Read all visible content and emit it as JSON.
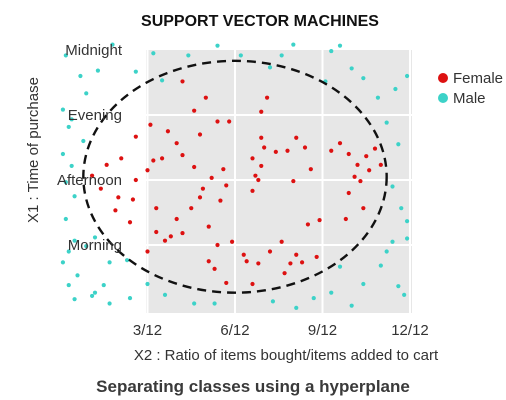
{
  "colors": {
    "female": "#dd1111",
    "male": "#3cd2c8",
    "panel": "#e7e7e7",
    "grid": "#ffffff",
    "boundary": "#111111"
  },
  "chart_data": {
    "type": "scatter",
    "title": "SUPPORT VECTOR MACHINES",
    "caption": "Separating classes using a hyperplane",
    "xlabel": "X2 : Ratio of items bought/items added to cart",
    "ylabel": "X1 : Time of purchase",
    "xlim": [
      0,
      12
    ],
    "ylim": [
      0,
      24
    ],
    "x_ticks": [
      {
        "value": 3,
        "label": "3/12"
      },
      {
        "value": 6,
        "label": "6/12"
      },
      {
        "value": 9,
        "label": "9/12"
      },
      {
        "value": 12,
        "label": "12/12"
      }
    ],
    "y_ticks": [
      {
        "value": 6,
        "label": "Morning"
      },
      {
        "value": 12,
        "label": "Afternoon"
      },
      {
        "value": 18,
        "label": "Evening"
      },
      {
        "value": 24,
        "label": "Midnight"
      }
    ],
    "grid": true,
    "legend": {
      "position": "top-right",
      "entries": [
        "Female",
        "Male"
      ]
    },
    "boundary": {
      "shape": "ellipse",
      "style": "dashed",
      "cx": 6.0,
      "cy": 12.3,
      "rx": 5.2,
      "ry": 10.7
    },
    "series": [
      {
        "name": "Female",
        "points": [
          [
            4.2,
            21.1
          ],
          [
            4.6,
            18.4
          ],
          [
            5.0,
            19.6
          ],
          [
            5.4,
            17.4
          ],
          [
            4.8,
            16.2
          ],
          [
            3.7,
            16.5
          ],
          [
            3.1,
            17.1
          ],
          [
            2.6,
            16.0
          ],
          [
            2.1,
            14.0
          ],
          [
            1.6,
            13.4
          ],
          [
            1.1,
            12.4
          ],
          [
            1.4,
            11.2
          ],
          [
            2.0,
            10.4
          ],
          [
            2.5,
            10.2
          ],
          [
            1.9,
            9.2
          ],
          [
            2.4,
            8.1
          ],
          [
            3.3,
            7.2
          ],
          [
            3.8,
            6.8
          ],
          [
            4.2,
            7.1
          ],
          [
            4.5,
            9.4
          ],
          [
            4.8,
            10.4
          ],
          [
            5.5,
            10.1
          ],
          [
            5.7,
            11.5
          ],
          [
            5.2,
            12.2
          ],
          [
            4.6,
            13.2
          ],
          [
            4.2,
            14.3
          ],
          [
            4.0,
            15.4
          ],
          [
            3.5,
            14.0
          ],
          [
            3.0,
            12.9
          ],
          [
            2.6,
            12.0
          ],
          [
            3.3,
            9.4
          ],
          [
            3.6,
            6.4
          ],
          [
            3.0,
            5.4
          ],
          [
            4.0,
            8.4
          ],
          [
            3.2,
            13.8
          ],
          [
            5.8,
            17.4
          ],
          [
            5.6,
            13.0
          ],
          [
            6.8,
            12.0
          ],
          [
            8.0,
            11.9
          ],
          [
            8.6,
            13.0
          ],
          [
            9.3,
            14.7
          ],
          [
            8.4,
            15.0
          ],
          [
            8.1,
            15.9
          ],
          [
            7.8,
            14.7
          ],
          [
            7.4,
            14.6
          ],
          [
            7.0,
            15.0
          ],
          [
            6.6,
            14.0
          ],
          [
            6.9,
            13.3
          ],
          [
            6.7,
            12.4
          ],
          [
            6.6,
            11.0
          ],
          [
            6.9,
            18.3
          ],
          [
            7.1,
            19.6
          ],
          [
            9.6,
            15.4
          ],
          [
            9.9,
            14.4
          ],
          [
            10.2,
            13.4
          ],
          [
            10.6,
            12.9
          ],
          [
            10.1,
            12.3
          ],
          [
            9.9,
            10.8
          ],
          [
            10.4,
            9.4
          ],
          [
            9.8,
            8.4
          ],
          [
            8.9,
            8.3
          ],
          [
            8.5,
            7.9
          ],
          [
            7.6,
            6.3
          ],
          [
            7.2,
            5.4
          ],
          [
            6.8,
            4.3
          ],
          [
            6.4,
            4.5
          ],
          [
            6.3,
            5.1
          ],
          [
            5.9,
            6.3
          ],
          [
            5.4,
            6.0
          ],
          [
            5.1,
            4.5
          ],
          [
            5.3,
            3.8
          ],
          [
            5.7,
            2.5
          ],
          [
            6.6,
            2.4
          ],
          [
            7.7,
            3.4
          ],
          [
            7.9,
            4.3
          ],
          [
            8.3,
            4.4
          ],
          [
            8.1,
            5.1
          ],
          [
            8.8,
            4.9
          ],
          [
            10.5,
            14.2
          ],
          [
            10.8,
            14.9
          ],
          [
            11.0,
            13.4
          ],
          [
            10.3,
            11.9
          ],
          [
            6.9,
            15.9
          ],
          [
            4.9,
            11.2
          ],
          [
            5.1,
            7.7
          ]
        ]
      },
      {
        "name": "Male",
        "points": [
          [
            0.2,
            23.5
          ],
          [
            0.7,
            21.6
          ],
          [
            1.3,
            22.1
          ],
          [
            1.8,
            24.5
          ],
          [
            2.6,
            22.0
          ],
          [
            3.2,
            23.7
          ],
          [
            3.5,
            21.2
          ],
          [
            4.4,
            23.5
          ],
          [
            5.4,
            24.4
          ],
          [
            6.2,
            23.5
          ],
          [
            7.2,
            22.4
          ],
          [
            7.6,
            23.5
          ],
          [
            8.0,
            24.5
          ],
          [
            9.1,
            21.1
          ],
          [
            9.3,
            23.9
          ],
          [
            9.6,
            24.4
          ],
          [
            10.0,
            22.3
          ],
          [
            10.4,
            21.4
          ],
          [
            10.9,
            19.6
          ],
          [
            11.5,
            20.4
          ],
          [
            11.9,
            21.6
          ],
          [
            11.2,
            17.3
          ],
          [
            11.6,
            15.3
          ],
          [
            11.4,
            11.4
          ],
          [
            11.7,
            9.4
          ],
          [
            11.9,
            8.2
          ],
          [
            11.4,
            6.3
          ],
          [
            11.0,
            4.1
          ],
          [
            11.6,
            2.2
          ],
          [
            11.8,
            1.4
          ],
          [
            10.4,
            2.4
          ],
          [
            10.0,
            0.4
          ],
          [
            9.6,
            4.0
          ],
          [
            9.3,
            1.6
          ],
          [
            8.7,
            1.1
          ],
          [
            8.1,
            0.2
          ],
          [
            7.3,
            0.8
          ],
          [
            5.3,
            0.6
          ],
          [
            4.6,
            0.6
          ],
          [
            3.6,
            1.4
          ],
          [
            3.0,
            2.4
          ],
          [
            2.4,
            1.1
          ],
          [
            1.7,
            0.6
          ],
          [
            1.1,
            1.3
          ],
          [
            0.5,
            1.0
          ],
          [
            0.3,
            2.3
          ],
          [
            0.6,
            3.2
          ],
          [
            0.1,
            4.4
          ],
          [
            0.3,
            5.4
          ],
          [
            0.9,
            5.9
          ],
          [
            0.5,
            6.4
          ],
          [
            1.2,
            6.7
          ],
          [
            0.2,
            8.4
          ],
          [
            0.5,
            10.5
          ],
          [
            0.2,
            11.8
          ],
          [
            0.4,
            13.3
          ],
          [
            0.1,
            14.4
          ],
          [
            0.8,
            15.6
          ],
          [
            0.3,
            16.9
          ],
          [
            0.1,
            18.5
          ],
          [
            0.4,
            17.6
          ],
          [
            0.9,
            20.0
          ],
          [
            1.7,
            4.4
          ],
          [
            2.3,
            4.6
          ],
          [
            1.5,
            2.3
          ],
          [
            1.2,
            1.6
          ],
          [
            11.2,
            5.4
          ],
          [
            11.9,
            6.6
          ]
        ]
      }
    ]
  }
}
